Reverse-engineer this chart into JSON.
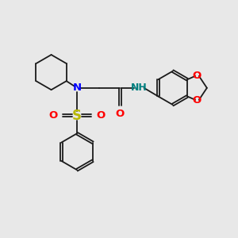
{
  "bg_color": "#e8e8e8",
  "bond_color": "#1a1a1a",
  "N_color": "#0000ff",
  "NH_color": "#008080",
  "S_color": "#b8b800",
  "O_color": "#ff0000",
  "figsize": [
    3.0,
    3.0
  ],
  "dpi": 100,
  "xlim": [
    0,
    10
  ],
  "ylim": [
    0,
    10
  ]
}
